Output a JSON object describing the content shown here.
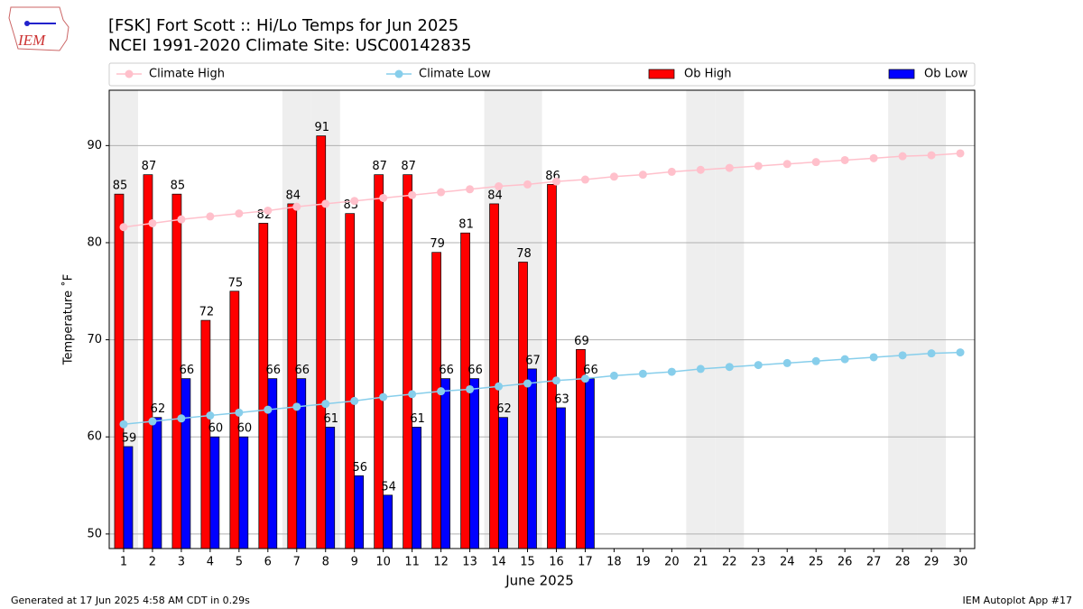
{
  "chart_data": {
    "type": "bar",
    "title": "[FSK] Fort Scott :: Hi/Lo Temps for Jun 2025",
    "subtitle": "NCEI 1991-2020 Climate Site: USC00142835",
    "logo_text": "IEM",
    "x_label": "June 2025",
    "y_label": "Temperature ˚F",
    "footer_left": "Generated at 17 Jun 2025 4:58 AM CDT in 0.29s",
    "footer_right": "IEM Autoplot App #17",
    "x": [
      1,
      2,
      3,
      4,
      5,
      6,
      7,
      8,
      9,
      10,
      11,
      12,
      13,
      14,
      15,
      16,
      17,
      18,
      19,
      20,
      21,
      22,
      23,
      24,
      25,
      26,
      27,
      28,
      29,
      30
    ],
    "xlim": [
      0.5,
      30.5
    ],
    "xticks": [
      1,
      2,
      3,
      4,
      5,
      6,
      7,
      8,
      9,
      10,
      11,
      12,
      13,
      14,
      15,
      16,
      17,
      18,
      19,
      20,
      21,
      22,
      23,
      24,
      25,
      26,
      27,
      28,
      29,
      30
    ],
    "ylim": [
      48.5,
      95.7
    ],
    "yticks": [
      50,
      60,
      70,
      80,
      90
    ],
    "grid": true,
    "shaded_days": [
      1,
      7,
      8,
      14,
      15,
      21,
      22,
      28,
      29
    ],
    "series": [
      {
        "name": "Climate High",
        "type": "line",
        "color": "#ffc0cb",
        "values": [
          81.6,
          82.0,
          82.4,
          82.7,
          83.0,
          83.3,
          83.7,
          84.0,
          84.3,
          84.6,
          84.9,
          85.2,
          85.5,
          85.8,
          86.0,
          86.3,
          86.5,
          86.8,
          87.0,
          87.3,
          87.5,
          87.7,
          87.9,
          88.1,
          88.3,
          88.5,
          88.7,
          88.9,
          89.0,
          89.2
        ]
      },
      {
        "name": "Climate Low",
        "type": "line",
        "color": "#87ceeb",
        "values": [
          61.3,
          61.6,
          61.9,
          62.2,
          62.5,
          62.8,
          63.1,
          63.4,
          63.7,
          64.1,
          64.4,
          64.7,
          64.9,
          65.2,
          65.5,
          65.8,
          66.0,
          66.3,
          66.5,
          66.7,
          67.0,
          67.2,
          67.4,
          67.6,
          67.8,
          68.0,
          68.2,
          68.4,
          68.6,
          68.7
        ]
      },
      {
        "name": "Ob High",
        "type": "bar",
        "color": "#ff0000",
        "values": [
          85,
          87,
          85,
          72,
          75,
          82,
          84,
          91,
          83,
          87,
          87,
          79,
          81,
          84,
          78,
          86,
          69,
          null,
          null,
          null,
          null,
          null,
          null,
          null,
          null,
          null,
          null,
          null,
          null,
          null
        ]
      },
      {
        "name": "Ob Low",
        "type": "bar",
        "color": "#0000ff",
        "values": [
          59,
          62,
          66,
          60,
          60,
          66,
          66,
          61,
          56,
          54,
          61,
          66,
          66,
          62,
          67,
          63,
          66,
          null,
          null,
          null,
          null,
          null,
          null,
          null,
          null,
          null,
          null,
          null,
          null,
          null
        ]
      }
    ]
  }
}
